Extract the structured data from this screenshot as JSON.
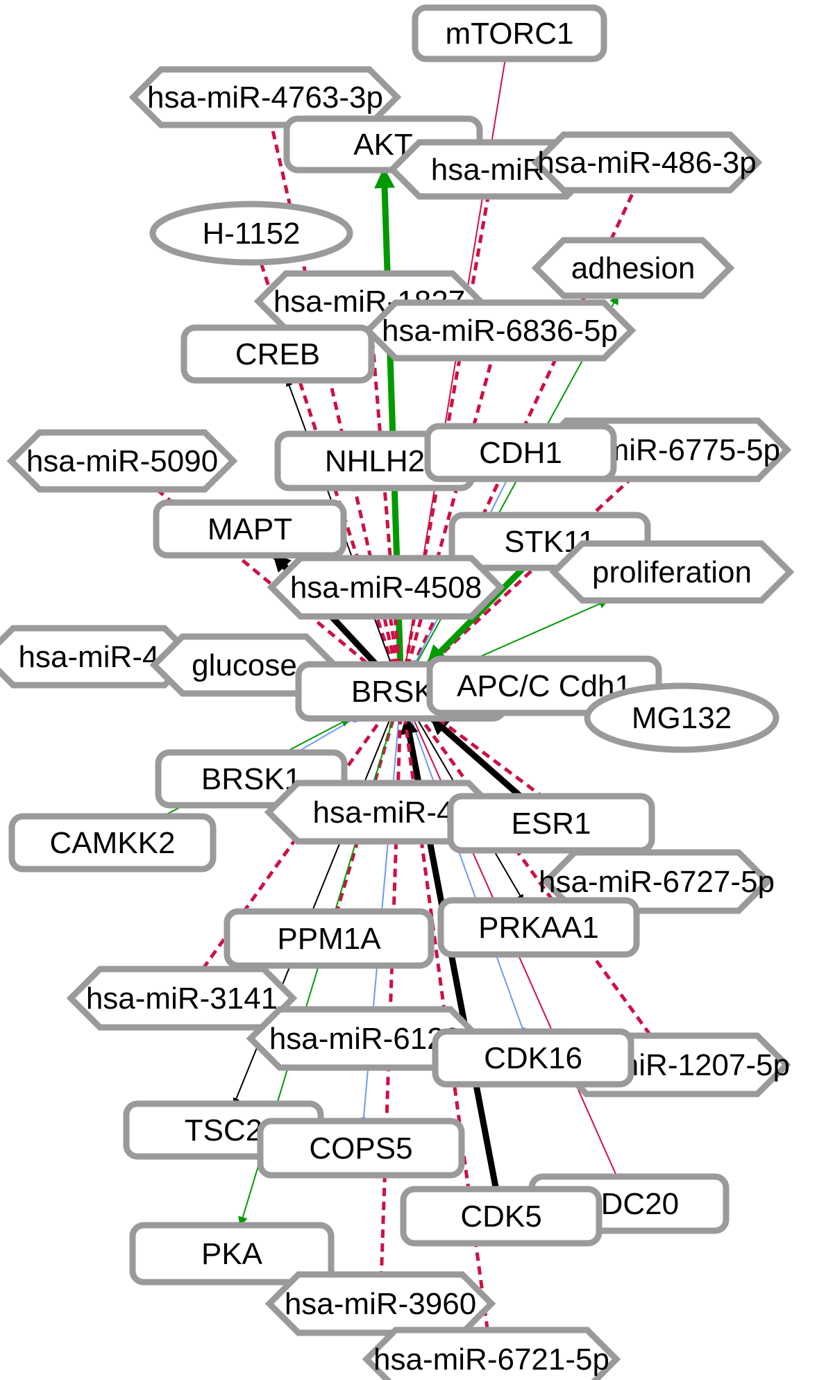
{
  "colors": {
    "node_border": "#9a9a9a",
    "node_fill": "#ffffff",
    "activation": "#009900",
    "inhibition": "#cc1144",
    "mirna": "#cc1144",
    "binding": "#6b9bf0",
    "generic": "#000000"
  },
  "nodes": [
    {
      "id": "mtorc1",
      "label": "mTORC1",
      "shape": "rect"
    },
    {
      "id": "mir4763",
      "label": "hsa-miR-4763-3p",
      "shape": "hexagon"
    },
    {
      "id": "akt",
      "label": "AKT",
      "shape": "rect"
    },
    {
      "id": "mir_partial_top",
      "label": "hsa-miR-",
      "shape": "hexagon"
    },
    {
      "id": "mir486",
      "label": "hsa-miR-486-3p",
      "shape": "hexagon"
    },
    {
      "id": "h1152",
      "label": "H-1152",
      "shape": "ellipse"
    },
    {
      "id": "adhesion",
      "label": "adhesion",
      "shape": "hexagon"
    },
    {
      "id": "mir1827",
      "label": "hsa-miR-1827",
      "shape": "hexagon"
    },
    {
      "id": "mir6836",
      "label": "hsa-miR-6836-5p",
      "shape": "hexagon"
    },
    {
      "id": "creb",
      "label": "CREB",
      "shape": "rect"
    },
    {
      "id": "mir5090",
      "label": "hsa-miR-5090",
      "shape": "hexagon"
    },
    {
      "id": "nhlh2",
      "label": "NHLH2",
      "shape": "rect"
    },
    {
      "id": "mir6775",
      "label": "hsa-miR-6775-5p",
      "shape": "hexagon"
    },
    {
      "id": "cdh1",
      "label": "CDH1",
      "shape": "rect"
    },
    {
      "id": "mapt",
      "label": "MAPT",
      "shape": "rect"
    },
    {
      "id": "stk11",
      "label": "STK11",
      "shape": "rect"
    },
    {
      "id": "proliferation",
      "label": "proliferation",
      "shape": "hexagon"
    },
    {
      "id": "mir4508",
      "label": "hsa-miR-4508",
      "shape": "hexagon"
    },
    {
      "id": "mir_left",
      "label": "hsa-miR-4",
      "shape": "hexagon"
    },
    {
      "id": "glucose",
      "label": "glucose",
      "shape": "hexagon"
    },
    {
      "id": "brsk2",
      "label": "BRSK2",
      "shape": "rect"
    },
    {
      "id": "apcc",
      "label": "APC/C Cdh1",
      "shape": "rect"
    },
    {
      "id": "mg132",
      "label": "MG132",
      "shape": "ellipse"
    },
    {
      "id": "brsk1",
      "label": "BRSK1",
      "shape": "rect"
    },
    {
      "id": "mir_mid",
      "label": "hsa-miR-4",
      "shape": "hexagon"
    },
    {
      "id": "camkk2",
      "label": "CAMKK2",
      "shape": "rect"
    },
    {
      "id": "esr1",
      "label": "ESR1",
      "shape": "rect"
    },
    {
      "id": "mir6727",
      "label": "hsa-miR-6727-5p",
      "shape": "hexagon"
    },
    {
      "id": "ppm1a",
      "label": "PPM1A",
      "shape": "rect"
    },
    {
      "id": "prkaa1",
      "label": "PRKAA1",
      "shape": "rect"
    },
    {
      "id": "mir3141",
      "label": "hsa-miR-3141",
      "shape": "hexagon"
    },
    {
      "id": "mir_partial_bottom",
      "label": "hsa-miR-6129",
      "shape": "hexagon"
    },
    {
      "id": "mir1207",
      "label": "hsa-miR-1207-5p",
      "shape": "hexagon"
    },
    {
      "id": "cdk16",
      "label": "CDK16",
      "shape": "rect"
    },
    {
      "id": "tsc2",
      "label": "TSC2",
      "shape": "rect"
    },
    {
      "id": "cops5",
      "label": "COPS5",
      "shape": "rect"
    },
    {
      "id": "cdc20",
      "label": "CDC20",
      "shape": "rect"
    },
    {
      "id": "cdk5",
      "label": "CDK5",
      "shape": "rect"
    },
    {
      "id": "pka",
      "label": "PKA",
      "shape": "rect"
    },
    {
      "id": "mir3960",
      "label": "hsa-miR-3960",
      "shape": "hexagon"
    },
    {
      "id": "mir6721",
      "label": "hsa-miR-6721-5p",
      "shape": "hexagon"
    }
  ],
  "edges": [
    {
      "from": "brsk2",
      "to": "mtorc1",
      "type": "inhibition"
    },
    {
      "from": "brsk2",
      "to": "akt",
      "type": "activation_strong"
    },
    {
      "from": "brsk2",
      "to": "mir4763",
      "type": "mirna"
    },
    {
      "from": "brsk2",
      "to": "mir_partial_top",
      "type": "mirna"
    },
    {
      "from": "brsk2",
      "to": "mir486",
      "type": "mirna"
    },
    {
      "from": "brsk2",
      "to": "h1152",
      "type": "mirna"
    },
    {
      "from": "brsk2",
      "to": "adhesion",
      "type": "activation"
    },
    {
      "from": "brsk2",
      "to": "mir1827",
      "type": "mirna"
    },
    {
      "from": "brsk2",
      "to": "mir6836",
      "type": "mirna"
    },
    {
      "from": "brsk2",
      "to": "creb",
      "type": "generic"
    },
    {
      "from": "brsk2",
      "to": "mir5090",
      "type": "mirna"
    },
    {
      "from": "brsk2",
      "to": "mir6775",
      "type": "mirna"
    },
    {
      "from": "cdh1",
      "to": "brsk2",
      "type": "binding"
    },
    {
      "from": "brsk2",
      "to": "mapt",
      "type": "generic_strong"
    },
    {
      "from": "stk11",
      "to": "brsk2",
      "type": "activation_strong"
    },
    {
      "from": "brsk2",
      "to": "proliferation",
      "type": "activation"
    },
    {
      "from": "brsk2",
      "to": "mir4508",
      "type": "mirna"
    },
    {
      "from": "brsk2",
      "to": "mir_left",
      "type": "mirna"
    },
    {
      "from": "glucose",
      "to": "brsk2",
      "type": "generic"
    },
    {
      "from": "apcc",
      "to": "brsk2",
      "type": "generic_strong"
    },
    {
      "from": "brsk1",
      "to": "brsk2",
      "type": "binding"
    },
    {
      "from": "camkk2",
      "to": "brsk2",
      "type": "activation"
    },
    {
      "from": "esr1",
      "to": "brsk2",
      "type": "generic_strong"
    },
    {
      "from": "brsk2",
      "to": "mir6727",
      "type": "mirna"
    },
    {
      "from": "ppm1a",
      "to": "brsk2",
      "type": "mirna"
    },
    {
      "from": "brsk2",
      "to": "prkaa1",
      "type": "generic"
    },
    {
      "from": "brsk2",
      "to": "mir3141",
      "type": "mirna"
    },
    {
      "from": "brsk2",
      "to": "mir1207",
      "type": "mirna"
    },
    {
      "from": "brsk2",
      "to": "cdk16",
      "type": "binding"
    },
    {
      "from": "brsk2",
      "to": "tsc2",
      "type": "generic"
    },
    {
      "from": "brsk2",
      "to": "cops5",
      "type": "binding"
    },
    {
      "from": "brsk2",
      "to": "cdc20",
      "type": "inhibition"
    },
    {
      "from": "cdk5",
      "to": "brsk2",
      "type": "generic_strong"
    },
    {
      "from": "brsk2",
      "to": "pka",
      "type": "activation"
    },
    {
      "from": "brsk2",
      "to": "mir3960",
      "type": "mirna"
    },
    {
      "from": "brsk2",
      "to": "mir6721",
      "type": "mirna"
    }
  ]
}
